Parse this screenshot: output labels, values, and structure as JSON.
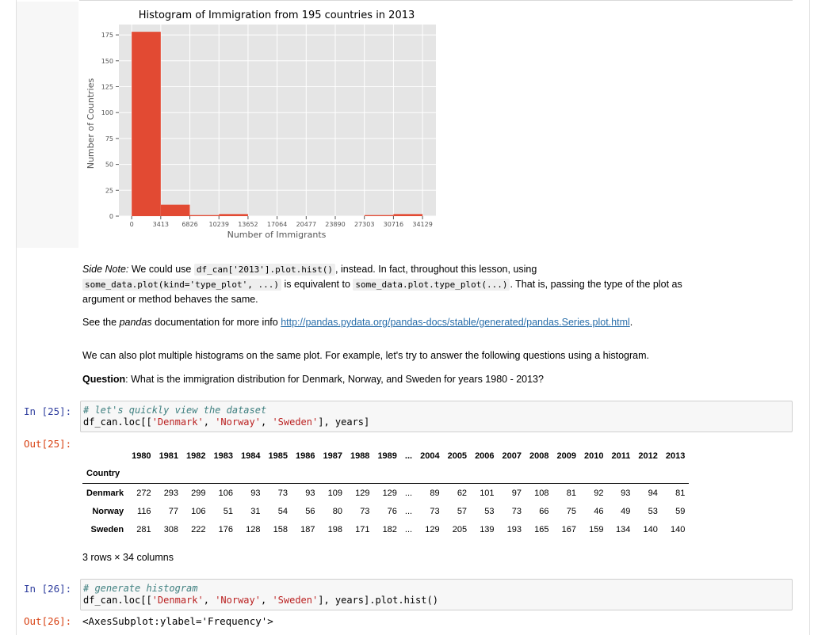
{
  "chart_data": {
    "type": "bar",
    "title": "Histogram of Immigration from 195 countries in 2013",
    "xlabel": "Number of Immigrants",
    "ylabel": "Number of Countries",
    "ylim": [
      0,
      185
    ],
    "xlim": [
      -1500,
      35700
    ],
    "yticks": [
      0,
      25,
      50,
      75,
      100,
      125,
      150,
      175
    ],
    "xticks": [
      0,
      3413,
      6826,
      10239,
      13652,
      17064,
      20477,
      23890,
      27303,
      30716,
      34129
    ],
    "bin_edges": [
      0,
      3413,
      6826,
      10239,
      13652,
      17064,
      20477,
      23890,
      27303,
      30716,
      34129
    ],
    "values": [
      178,
      11,
      1,
      2,
      0,
      0,
      0,
      0,
      1,
      2
    ],
    "bar_color": "#E24A33",
    "bg_color": "#E5E5E5",
    "grid": true
  },
  "note": {
    "side_note_label": "Side Note:",
    "p1_a": " We could use ",
    "code1": "df_can['2013'].plot.hist()",
    "p1_b": ", instead. In fact, throughout this lesson, using",
    "code2": "some_data.plot(kind='type_plot', ...)",
    "p1_c": " is equivalent to ",
    "code3": "some_data.plot.type_plot(...)",
    "p1_d": ". That is, passing the type of the plot as",
    "p1_e": "argument or method behaves the same.",
    "p2_a": "See the ",
    "p2_pandas": "pandas",
    "p2_b": " documentation for more info ",
    "p2_link": "http://pandas.pydata.org/pandas-docs/stable/generated/pandas.Series.plot.html",
    "p2_c": ".",
    "p3": "We can also plot multiple histograms on the same plot. For example, let's try to answer the following questions using a histogram.",
    "q_label": "Question",
    "q_text": ": What is the immigration distribution for Denmark, Norway, and Sweden for years 1980 - 2013?"
  },
  "cells": {
    "in25_prompt": "In [25]:",
    "in25_comment": "# let's quickly view the dataset",
    "in25_a": "df_can.loc[[",
    "in25_s1": "'Denmark'",
    "in25_c1": ", ",
    "in25_s2": "'Norway'",
    "in25_c2": ", ",
    "in25_s3": "'Sweden'",
    "in25_b": "], years]",
    "out25_prompt": "Out[25]:",
    "in26_prompt": "In [26]:",
    "in26_comment": "# generate histogram",
    "in26_a": "df_can.loc[[",
    "in26_s1": "'Denmark'",
    "in26_c1": ", ",
    "in26_s2": "'Norway'",
    "in26_c2": ", ",
    "in26_s3": "'Sweden'",
    "in26_b": "], years].plot.hist()",
    "out26_prompt": "Out[26]:",
    "out26_text": "<AxesSubplot:ylabel='Frequency'>"
  },
  "table": {
    "columns": [
      "1980",
      "1981",
      "1982",
      "1983",
      "1984",
      "1985",
      "1986",
      "1987",
      "1988",
      "1989",
      "...",
      "2004",
      "2005",
      "2006",
      "2007",
      "2008",
      "2009",
      "2010",
      "2011",
      "2012",
      "2013"
    ],
    "index_name": "Country",
    "rows": [
      {
        "country": "Denmark",
        "values": [
          "272",
          "293",
          "299",
          "106",
          "93",
          "73",
          "93",
          "109",
          "129",
          "129",
          "...",
          "89",
          "62",
          "101",
          "97",
          "108",
          "81",
          "92",
          "93",
          "94",
          "81"
        ]
      },
      {
        "country": "Norway",
        "values": [
          "116",
          "77",
          "106",
          "51",
          "31",
          "54",
          "56",
          "80",
          "73",
          "76",
          "...",
          "73",
          "57",
          "53",
          "73",
          "66",
          "75",
          "46",
          "49",
          "53",
          "59"
        ]
      },
      {
        "country": "Sweden",
        "values": [
          "281",
          "308",
          "222",
          "176",
          "128",
          "158",
          "187",
          "198",
          "171",
          "182",
          "...",
          "129",
          "205",
          "139",
          "193",
          "165",
          "167",
          "159",
          "134",
          "140",
          "140"
        ]
      }
    ],
    "shape_text": "3 rows × 34 columns"
  }
}
